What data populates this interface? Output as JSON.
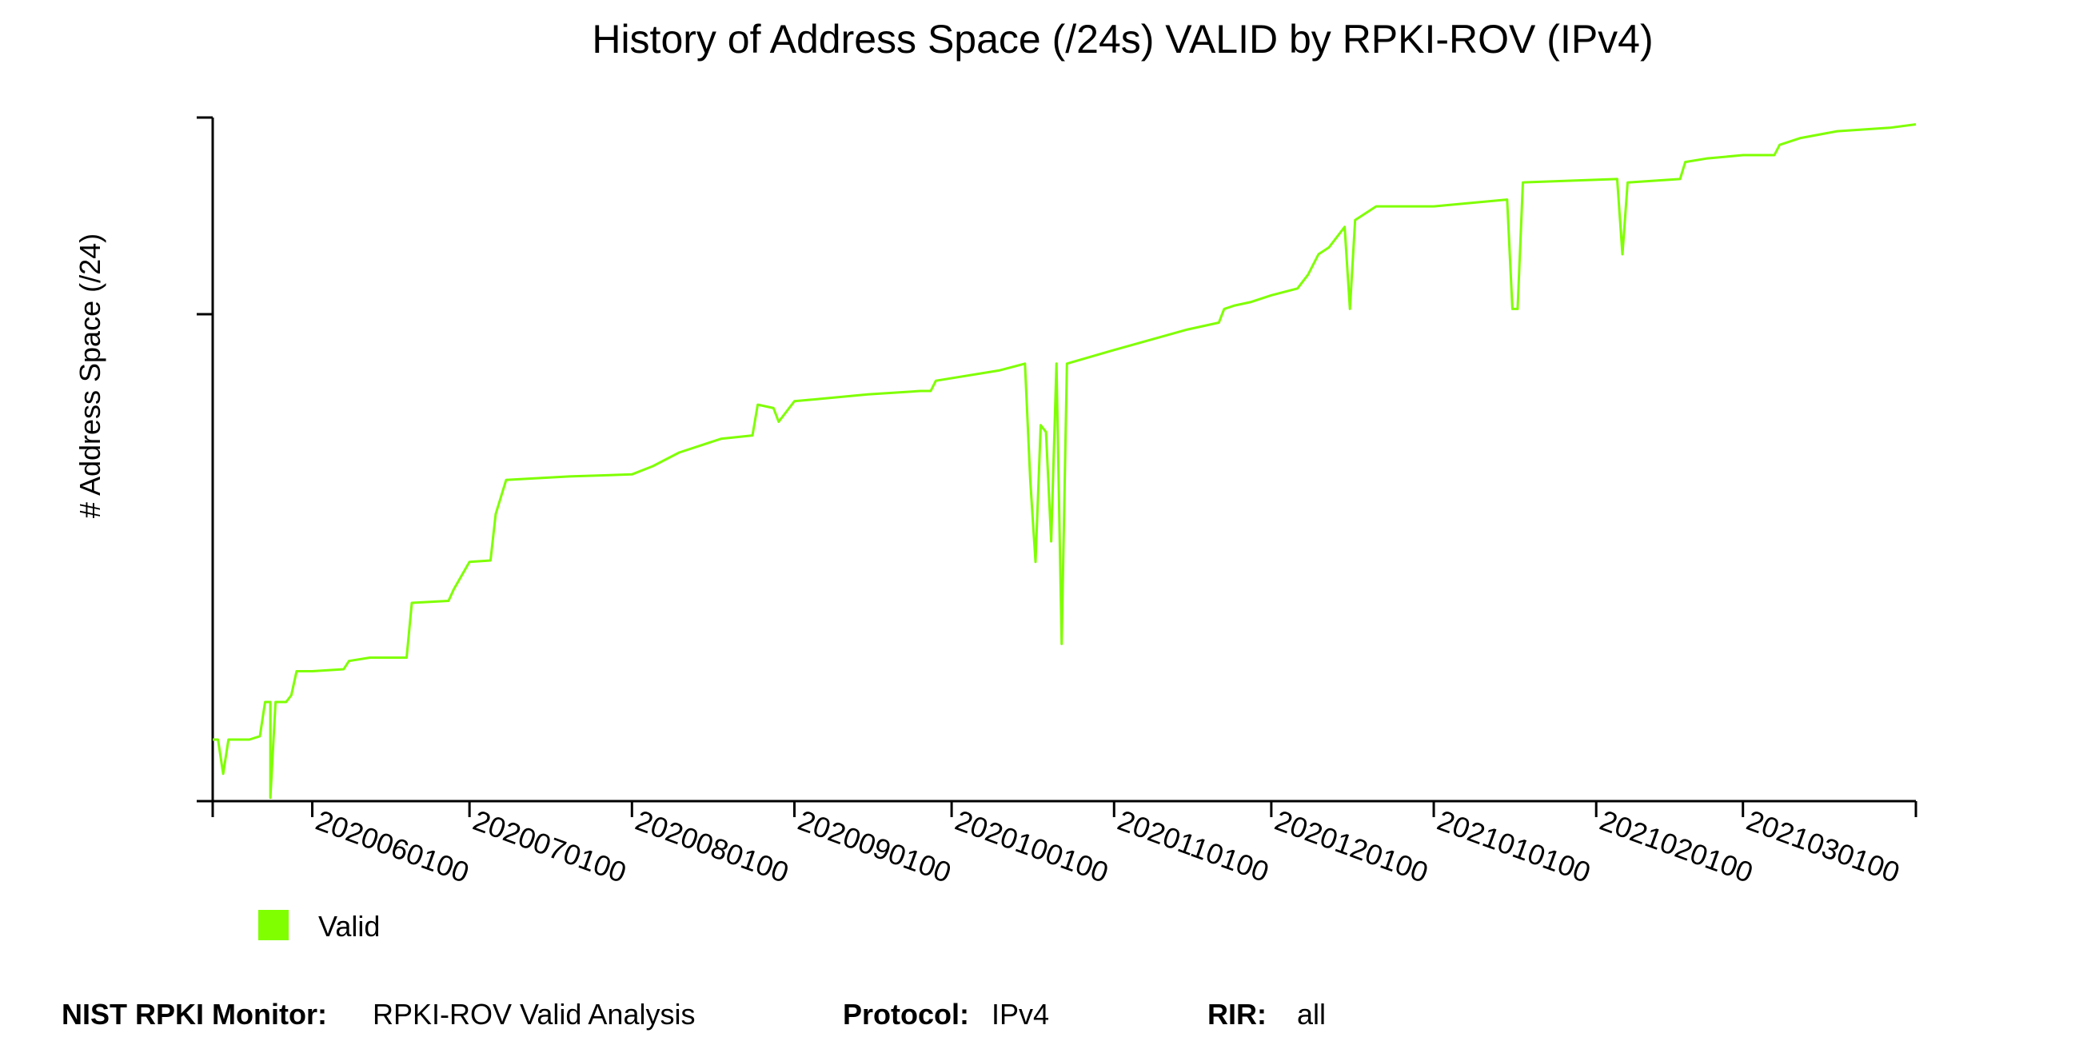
{
  "chart_data": {
    "type": "line",
    "title": "History of Address Space (/24s) VALID by RPKI-ROV (IPv4)",
    "ylabel": "# Address Space (/24)",
    "xlabel": "",
    "x_tick_labels": [
      "2020060100",
      "2020070100",
      "2020080100",
      "2020090100",
      "2020100100",
      "2020110100",
      "2020120100",
      "2021010100",
      "2021020100",
      "2021030100"
    ],
    "x_tick_dates": [
      "2020-06-01",
      "2020-07-01",
      "2020-08-01",
      "2020-09-01",
      "2020-10-01",
      "2020-11-01",
      "2020-12-01",
      "2021-01-01",
      "2021-02-01",
      "2021-03-01"
    ],
    "xlim": [
      "2020-05-13",
      "2021-04-03"
    ],
    "y_ticks_labeled": false,
    "ylim": [
      0,
      1
    ],
    "grid": false,
    "legend_position": "bottom-left",
    "series": [
      {
        "name": "Valid",
        "color": "#7fff00",
        "points": [
          [
            "2020-05-13",
            0.09
          ],
          [
            "2020-05-14",
            0.09
          ],
          [
            "2020-05-15",
            0.04
          ],
          [
            "2020-05-16",
            0.09
          ],
          [
            "2020-05-20",
            0.09
          ],
          [
            "2020-05-22",
            0.095
          ],
          [
            "2020-05-23",
            0.145
          ],
          [
            "2020-05-24",
            0.145
          ],
          [
            "2020-05-24",
            0.005
          ],
          [
            "2020-05-25",
            0.145
          ],
          [
            "2020-05-27",
            0.145
          ],
          [
            "2020-05-28",
            0.155
          ],
          [
            "2020-05-29",
            0.19
          ],
          [
            "2020-06-01",
            0.19
          ],
          [
            "2020-06-07",
            0.193
          ],
          [
            "2020-06-08",
            0.205
          ],
          [
            "2020-06-12",
            0.21
          ],
          [
            "2020-06-19",
            0.21
          ],
          [
            "2020-06-20",
            0.29
          ],
          [
            "2020-06-27",
            0.293
          ],
          [
            "2020-06-28",
            0.31
          ],
          [
            "2020-07-01",
            0.35
          ],
          [
            "2020-07-05",
            0.352
          ],
          [
            "2020-07-06",
            0.42
          ],
          [
            "2020-07-08",
            0.47
          ],
          [
            "2020-07-20",
            0.475
          ],
          [
            "2020-08-01",
            0.478
          ],
          [
            "2020-08-05",
            0.49
          ],
          [
            "2020-08-10",
            0.51
          ],
          [
            "2020-08-18",
            0.53
          ],
          [
            "2020-08-24",
            0.535
          ],
          [
            "2020-08-25",
            0.58
          ],
          [
            "2020-08-28",
            0.575
          ],
          [
            "2020-08-29",
            0.555
          ],
          [
            "2020-09-01",
            0.585
          ],
          [
            "2020-09-15",
            0.595
          ],
          [
            "2020-09-25",
            0.6
          ],
          [
            "2020-09-27",
            0.6
          ],
          [
            "2020-09-28",
            0.615
          ],
          [
            "2020-10-10",
            0.63
          ],
          [
            "2020-10-15",
            0.64
          ],
          [
            "2020-10-16",
            0.47
          ],
          [
            "2020-10-17",
            0.35
          ],
          [
            "2020-10-18",
            0.55
          ],
          [
            "2020-10-19",
            0.54
          ],
          [
            "2020-10-20",
            0.38
          ],
          [
            "2020-10-21",
            0.64
          ],
          [
            "2020-10-22",
            0.23
          ],
          [
            "2020-10-23",
            0.64
          ],
          [
            "2020-11-01",
            0.66
          ],
          [
            "2020-11-15",
            0.69
          ],
          [
            "2020-11-21",
            0.7
          ],
          [
            "2020-11-22",
            0.72
          ],
          [
            "2020-11-24",
            0.725
          ],
          [
            "2020-11-27",
            0.73
          ],
          [
            "2020-12-01",
            0.74
          ],
          [
            "2020-12-06",
            0.75
          ],
          [
            "2020-12-08",
            0.77
          ],
          [
            "2020-12-10",
            0.8
          ],
          [
            "2020-12-12",
            0.81
          ],
          [
            "2020-12-15",
            0.84
          ],
          [
            "2020-12-16",
            0.72
          ],
          [
            "2020-12-17",
            0.85
          ],
          [
            "2020-12-21",
            0.87
          ],
          [
            "2021-01-01",
            0.87
          ],
          [
            "2021-01-15",
            0.88
          ],
          [
            "2021-01-16",
            0.72
          ],
          [
            "2021-01-17",
            0.72
          ],
          [
            "2021-01-18",
            0.905
          ],
          [
            "2021-02-05",
            0.91
          ],
          [
            "2021-02-06",
            0.8
          ],
          [
            "2021-02-07",
            0.905
          ],
          [
            "2021-02-17",
            0.91
          ],
          [
            "2021-02-18",
            0.935
          ],
          [
            "2021-02-22",
            0.94
          ],
          [
            "2021-03-01",
            0.945
          ],
          [
            "2021-03-07",
            0.945
          ],
          [
            "2021-03-08",
            0.96
          ],
          [
            "2021-03-12",
            0.97
          ],
          [
            "2021-03-19",
            0.98
          ],
          [
            "2021-03-29",
            0.985
          ],
          [
            "2021-04-03",
            0.99
          ]
        ]
      }
    ]
  },
  "legend": {
    "label": "Valid",
    "color": "#7fff00"
  },
  "footer": {
    "monitor_label": "NIST RPKI Monitor:",
    "monitor_value": "RPKI-ROV Valid Analysis",
    "protocol_label": "Protocol:",
    "protocol_value": "IPv4",
    "rir_label": "RIR:",
    "rir_value": "all"
  }
}
